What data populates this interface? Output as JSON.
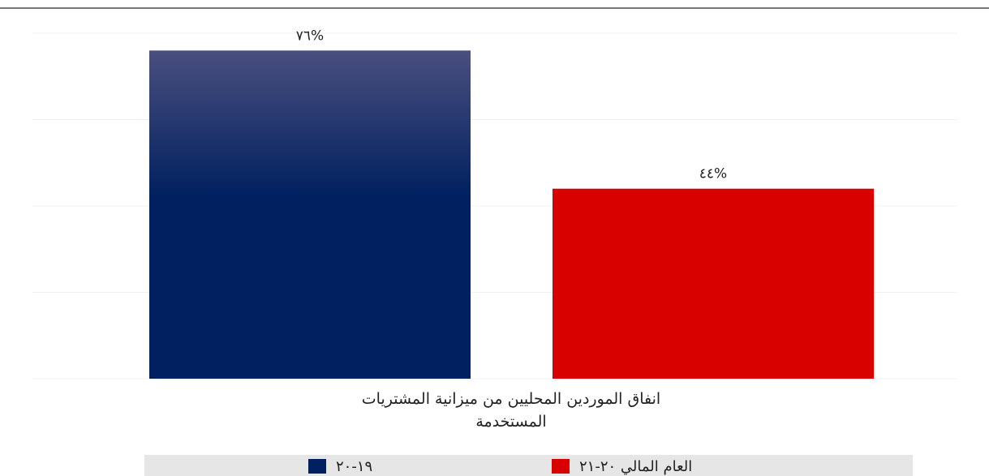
{
  "chart_data": {
    "type": "bar",
    "categories": [
      "انفاق الموردين المحليين  من ميزانية المشتريات المستخدمة"
    ],
    "series": [
      {
        "name": "١٩-٢٠",
        "color": "#00205f",
        "values": [
          76
        ],
        "value_labels": [
          "٧٦%"
        ]
      },
      {
        "name": "العام المالي ٢٠-٢١",
        "color": "#d90000",
        "values": [
          44
        ],
        "value_labels": [
          "٤٤%"
        ]
      }
    ],
    "ylim": [
      0,
      80
    ],
    "yticks": [
      0,
      20,
      40,
      60,
      80
    ],
    "grid": true,
    "legend": "bottom"
  }
}
